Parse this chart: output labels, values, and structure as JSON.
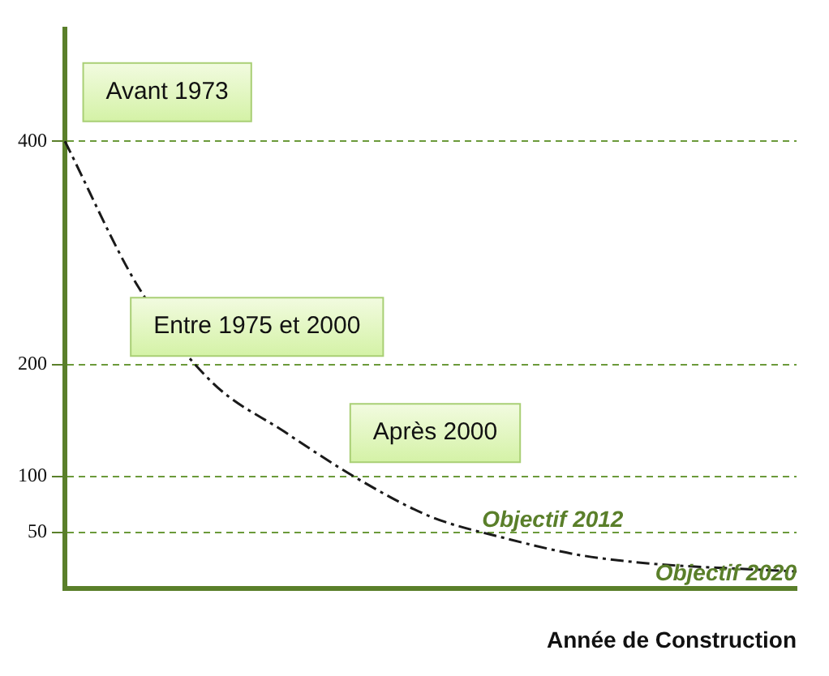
{
  "chart_data": {
    "type": "line",
    "xlabel": "Année de Construction",
    "categories": [
      null,
      null,
      null,
      null,
      null,
      null,
      null,
      null,
      null,
      null,
      null
    ],
    "series": [
      {
        "color": "#1a1a1a",
        "values": [
          400,
          270,
          185,
          140,
          98,
          64,
          45,
          30,
          22,
          18,
          15
        ]
      }
    ],
    "ylim": [
      0,
      500
    ],
    "yticks": [
      50,
      100,
      200,
      400
    ],
    "grid": "y",
    "legend": false,
    "marker": "none",
    "line_style": "dashed",
    "annotations": [
      "Avant 1973",
      "Entre 1975 et 2000",
      "Après 2000",
      "Objectif 2012",
      "Objectif 2020"
    ]
  }
}
